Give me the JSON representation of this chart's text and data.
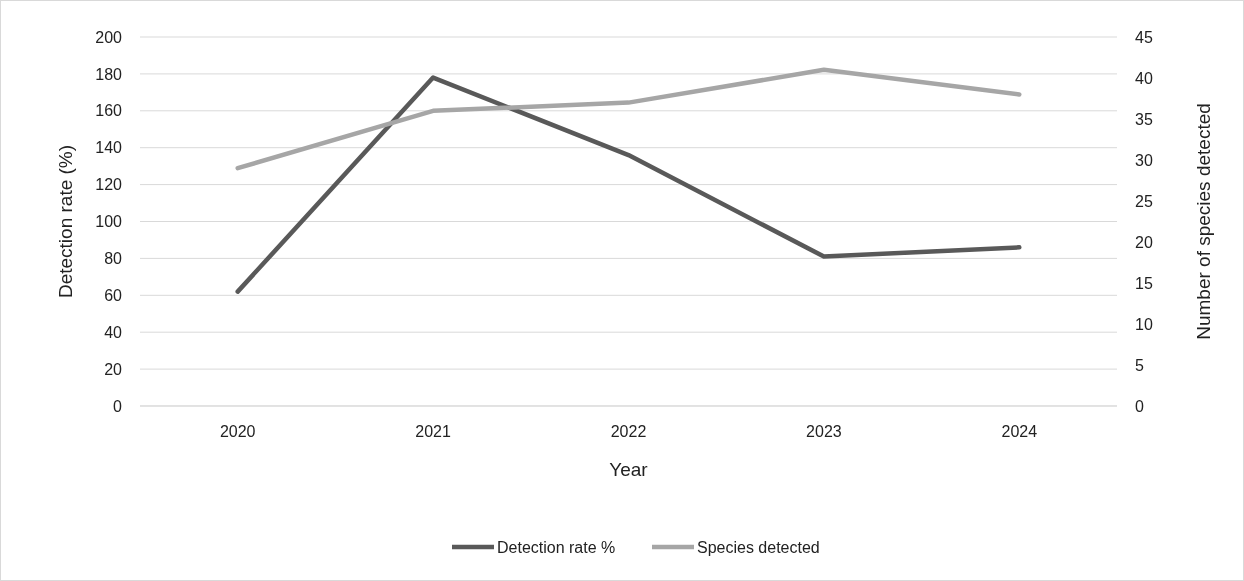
{
  "chart_data": {
    "type": "line",
    "xlabel": "Year",
    "ylabel": "Detection rate (%)",
    "y2label": "Number of species detected",
    "categories": [
      "2020",
      "2021",
      "2022",
      "2023",
      "2024"
    ],
    "series": [
      {
        "name": "Detection rate %",
        "color": "#595959",
        "values": [
          62,
          178,
          136,
          81,
          86
        ]
      },
      {
        "name": "Species detected",
        "color": "#a6a6a6",
        "axis": "y2",
        "values": [
          29,
          36,
          37,
          41,
          38
        ]
      }
    ],
    "ylim": [
      0,
      200
    ],
    "yticks": [
      0,
      20,
      40,
      60,
      80,
      100,
      120,
      140,
      160,
      180,
      200
    ],
    "y2lim": [
      0,
      45
    ],
    "y2ticks": [
      0,
      5,
      10,
      15,
      20,
      25,
      30,
      35,
      40,
      45
    ],
    "grid": "y",
    "legend": "bottom",
    "marker": "none",
    "line_style": "solid"
  }
}
